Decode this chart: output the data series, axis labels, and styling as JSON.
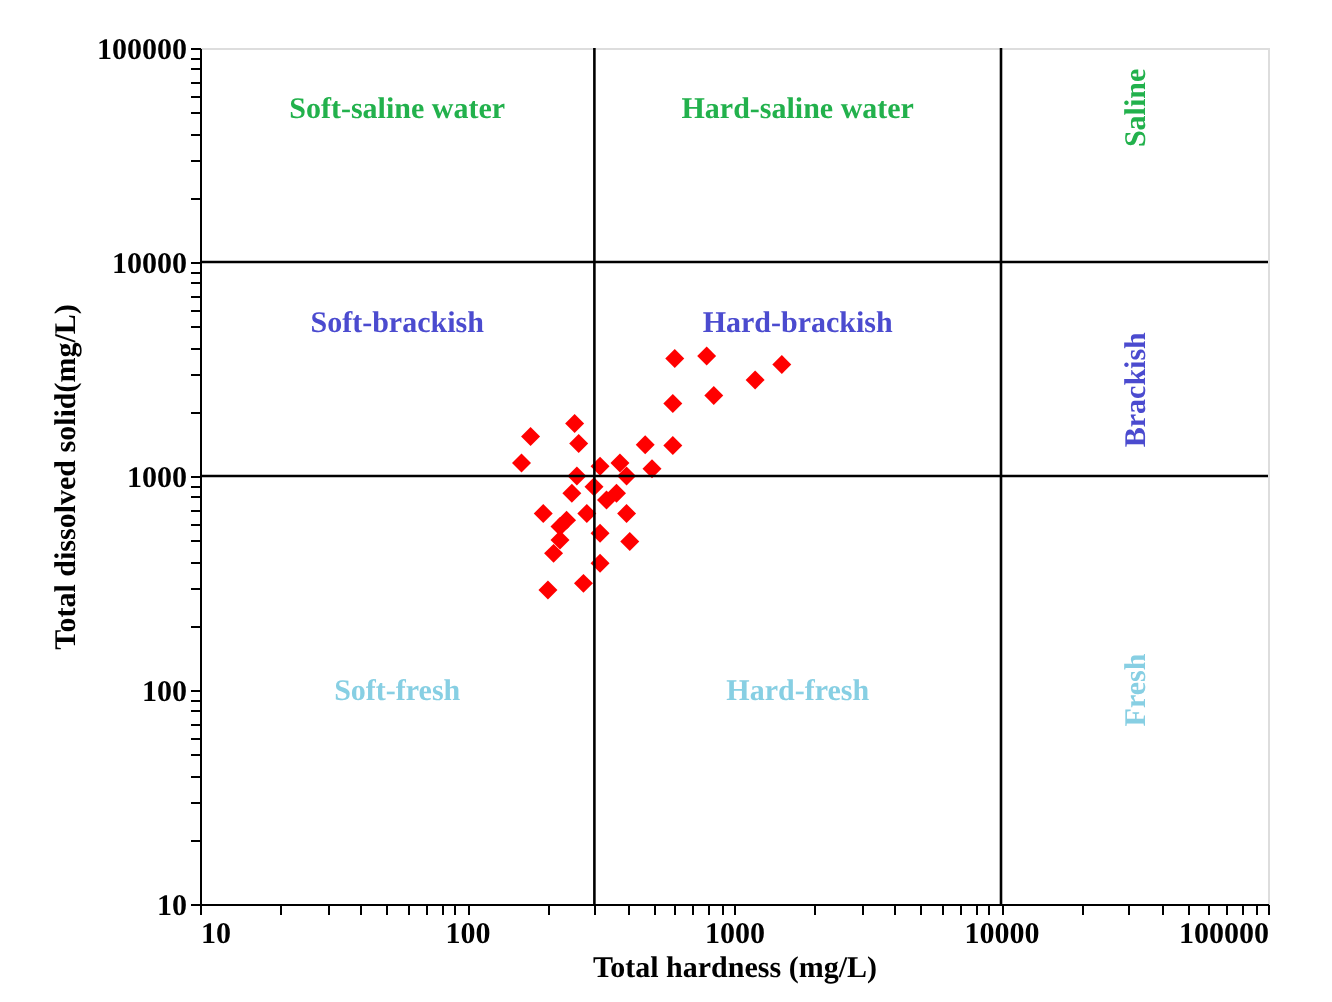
{
  "chart_data": {
    "type": "scatter",
    "xlabel": "Total hardness (mg/L)",
    "ylabel": "Total dissolved solid(mg/L)",
    "log": "xy",
    "grid": false,
    "marker": "diamond",
    "xlim": [
      10,
      100000
    ],
    "ylim": [
      10,
      100000
    ],
    "xticks": [
      10,
      {
        "value": 20,
        "label": null
      },
      {
        "value": 30,
        "label": null
      },
      {
        "value": 40,
        "label": null
      },
      {
        "value": 50,
        "label": null
      },
      {
        "value": 60,
        "label": null
      },
      {
        "value": 70,
        "label": null
      },
      {
        "value": 80,
        "label": null
      },
      {
        "value": 90,
        "label": null
      },
      100,
      {
        "value": 200,
        "label": null
      },
      {
        "value": 300,
        "label": null
      },
      {
        "value": 400,
        "label": null
      },
      {
        "value": 500,
        "label": null
      },
      {
        "value": 600,
        "label": null
      },
      {
        "value": 700,
        "label": null
      },
      {
        "value": 800,
        "label": null
      },
      {
        "value": 900,
        "label": null
      },
      1000,
      {
        "value": 2000,
        "label": null
      },
      {
        "value": 3000,
        "label": null
      },
      {
        "value": 4000,
        "label": null
      },
      {
        "value": 5000,
        "label": null
      },
      {
        "value": 6000,
        "label": null
      },
      {
        "value": 7000,
        "label": null
      },
      {
        "value": 8000,
        "label": null
      },
      {
        "value": 9000,
        "label": null
      },
      10000,
      {
        "value": 20000,
        "label": null
      },
      {
        "value": 30000,
        "label": null
      },
      {
        "value": 40000,
        "label": null
      },
      {
        "value": 50000,
        "label": null
      },
      {
        "value": 60000,
        "label": null
      },
      {
        "value": 70000,
        "label": null
      },
      {
        "value": 80000,
        "label": null
      },
      {
        "value": 90000,
        "label": null
      },
      100000
    ],
    "yticks": [
      10,
      {
        "value": 20,
        "label": null
      },
      {
        "value": 30,
        "label": null
      },
      {
        "value": 40,
        "label": null
      },
      {
        "value": 50,
        "label": null
      },
      {
        "value": 60,
        "label": null
      },
      {
        "value": 70,
        "label": null
      },
      {
        "value": 80,
        "label": null
      },
      {
        "value": 90,
        "label": null
      },
      100,
      {
        "value": 200,
        "label": null
      },
      {
        "value": 300,
        "label": null
      },
      {
        "value": 400,
        "label": null
      },
      {
        "value": 500,
        "label": null
      },
      {
        "value": 600,
        "label": null
      },
      {
        "value": 700,
        "label": null
      },
      {
        "value": 800,
        "label": null
      },
      {
        "value": 900,
        "label": null
      },
      1000,
      {
        "value": 2000,
        "label": null
      },
      {
        "value": 3000,
        "label": null
      },
      {
        "value": 4000,
        "label": null
      },
      {
        "value": 5000,
        "label": null
      },
      {
        "value": 6000,
        "label": null
      },
      {
        "value": 7000,
        "label": null
      },
      {
        "value": 8000,
        "label": null
      },
      {
        "value": 9000,
        "label": null
      },
      10000,
      {
        "value": 20000,
        "label": null
      },
      {
        "value": 30000,
        "label": null
      },
      {
        "value": 40000,
        "label": null
      },
      {
        "value": 50000,
        "label": null
      },
      {
        "value": 60000,
        "label": null
      },
      {
        "value": 70000,
        "label": null
      },
      {
        "value": 80000,
        "label": null
      },
      {
        "value": 90000,
        "label": null
      },
      100000
    ],
    "ref_lines": [
      {
        "axis": "x",
        "value": 300,
        "color": "#000000"
      },
      {
        "axis": "x",
        "value": 10000,
        "color": "#000000"
      },
      {
        "axis": "y",
        "value": 1000,
        "color": "#000000"
      },
      {
        "axis": "y",
        "value": 10000,
        "color": "#000000"
      }
    ],
    "annotations": [
      "Soft-saline water",
      "Hard-saline water",
      "Saline",
      "Soft-brackish",
      "Hard-brackish",
      "Brackish",
      "Soft-fresh",
      "Hard-fresh",
      "Fresh"
    ],
    "series": [
      {
        "color": "#ff0000",
        "x": [
          600,
          790,
          1510,
          1200,
          840,
          590,
          173,
          160,
          253,
          262,
          465,
          590,
          493,
          315,
          258,
          396,
          193,
          236,
          223,
          211,
          333,
          396,
          281,
          315,
          407,
          315,
          201,
          273,
          247,
          363,
          299,
          223,
          374
        ],
        "values": [
          3540,
          3640,
          3320,
          2810,
          2380,
          2180,
          1530,
          1150,
          1760,
          1420,
          1400,
          1390,
          1080,
          1110,
          1000,
          1000,
          668,
          622,
          502,
          435,
          773,
          668,
          668,
          540,
          494,
          391,
          293,
          315,
          830,
          830,
          891,
          581,
          1150
        ]
      }
    ]
  }
}
